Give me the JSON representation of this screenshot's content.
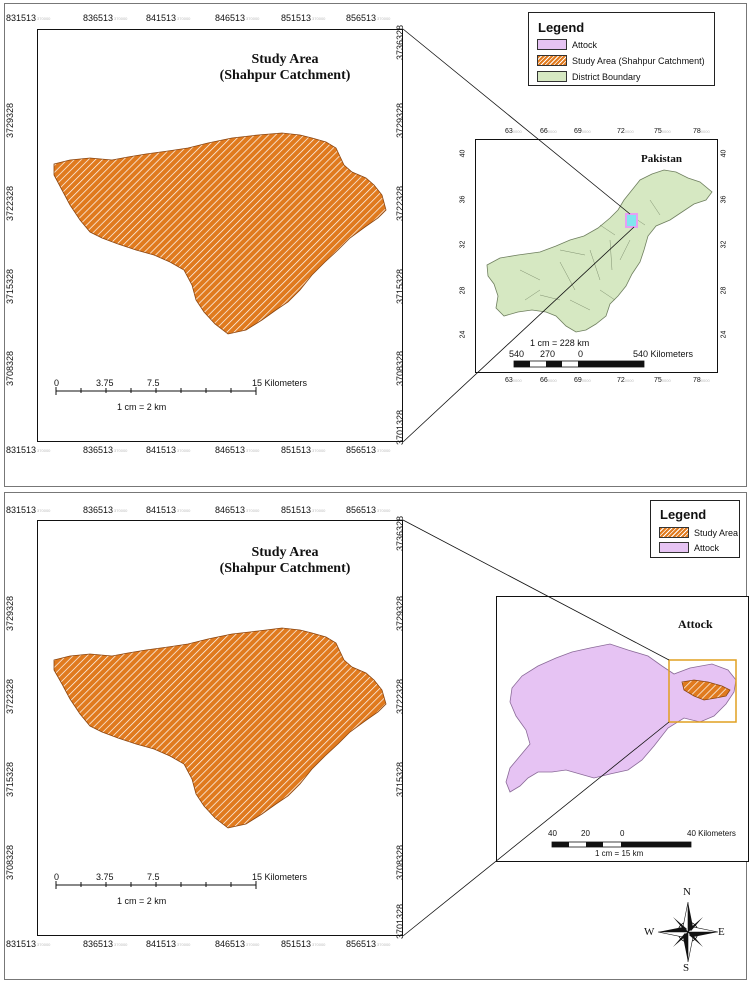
{
  "colors": {
    "catchment": "#E07A1E",
    "attock": "#E6C3F3",
    "district": "#D6E8C2",
    "locator_box": "#E0A020"
  },
  "top_map": {
    "title_line1": "Study Area",
    "title_line2": "(Shahpur Catchment)",
    "x_ticks": [
      "831513",
      "836513",
      "841513",
      "846513",
      "851513",
      "856513"
    ],
    "y_ticks": [
      "3736328",
      "3729328",
      "3722328",
      "3715328",
      "3708328",
      "3701328"
    ],
    "tick_suffix": "370000",
    "scale_labels": [
      "0",
      "3.75",
      "7.5",
      "15 Kilometers"
    ],
    "scale_text": "1 cm = 2 km"
  },
  "bottom_map": {
    "title_line1": "Study Area",
    "title_line2": "(Shahpur Catchment)",
    "x_ticks": [
      "831513",
      "836513",
      "841513",
      "846513",
      "851513",
      "856513"
    ],
    "y_ticks": [
      "3736328",
      "3729328",
      "3722328",
      "3715328",
      "3708328",
      "3701328"
    ],
    "tick_suffix": "370000",
    "scale_labels": [
      "0",
      "3.75",
      "7.5",
      "15 Kilometers"
    ],
    "scale_text": "1 cm = 2 km"
  },
  "legend_top": {
    "title": "Legend",
    "items": [
      "Attock",
      "Study Area (Shahpur Catchment)",
      "District Boundary"
    ]
  },
  "legend_bottom": {
    "title": "Legend",
    "items": [
      "Study Area",
      "Attock"
    ]
  },
  "pakistan_map": {
    "title": "Pakistan",
    "x_ticks": [
      "63",
      "66",
      "69",
      "72",
      "75",
      "78"
    ],
    "y_ticks": [
      "40",
      "36",
      "32",
      "28",
      "24"
    ],
    "tick_suffix": "0000",
    "scale_labels": [
      "540",
      "270",
      "0",
      "540 Kilometers"
    ],
    "scale_text": "1 cm = 228 km"
  },
  "attock_map": {
    "title": "Attock",
    "scale_labels": [
      "40",
      "20",
      "0",
      "40 Kilometers"
    ],
    "scale_text": "1 cm = 15 km"
  },
  "north_arrow": {
    "n": "N",
    "e": "E",
    "s": "S",
    "w": "W"
  }
}
